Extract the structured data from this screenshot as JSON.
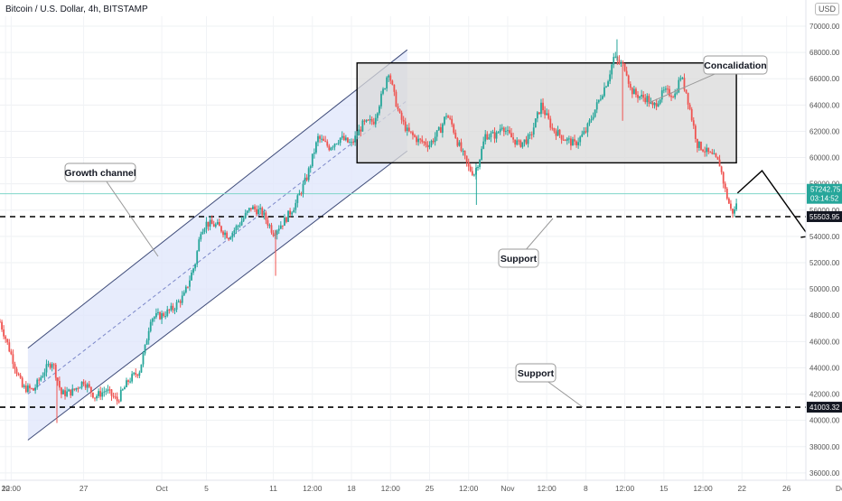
{
  "header": {
    "title": "Bitcoin / U.S. Dollar, 4h, BITSTAMP",
    "currency_button": "USD"
  },
  "chart_data": {
    "type": "candlestick",
    "y_axis": {
      "ticks": [
        36000,
        38000,
        40000,
        42000,
        44000,
        46000,
        48000,
        50000,
        52000,
        54000,
        56000,
        58000,
        60000,
        62000,
        64000,
        66000,
        68000,
        70000
      ],
      "tick_labels": [
        "36000.00",
        "38000.00",
        "40000.00",
        "42000.00",
        "44000.00",
        "46000.00",
        "48000.00",
        "50000.00",
        "52000.00",
        "54000.00",
        "56000.00",
        "58000.00",
        "60000.00",
        "62000.00",
        "64000.00",
        "66000.00",
        "68000.00",
        "70000.00"
      ],
      "range": [
        35400,
        72000
      ]
    },
    "x_axis": {
      "ticks": [
        {
          "day": 20,
          "label": "20"
        },
        {
          "day": 20.5,
          "label": "12:00"
        },
        {
          "day": 27,
          "label": "27"
        },
        {
          "day": 34,
          "label": "Oct"
        },
        {
          "day": 38,
          "label": "5"
        },
        {
          "day": 44,
          "label": "11"
        },
        {
          "day": 47.5,
          "label": "12:00"
        },
        {
          "day": 51,
          "label": "18"
        },
        {
          "day": 54.5,
          "label": "12:00"
        },
        {
          "day": 58,
          "label": "25"
        },
        {
          "day": 61.5,
          "label": "12:00"
        },
        {
          "day": 65,
          "label": "Nov"
        },
        {
          "day": 68.5,
          "label": "12:00"
        },
        {
          "day": 72,
          "label": "8"
        },
        {
          "day": 75.5,
          "label": "12:00"
        },
        {
          "day": 79,
          "label": "15"
        },
        {
          "day": 82.5,
          "label": "12:00"
        },
        {
          "day": 86,
          "label": "22"
        },
        {
          "day": 90,
          "label": "26"
        },
        {
          "day": 95,
          "label": "Dec"
        }
      ]
    },
    "price_path": [
      [
        19.5,
        47500
      ],
      [
        20.5,
        45000
      ],
      [
        21.5,
        42500
      ],
      [
        22.5,
        42300
      ],
      [
        23.5,
        43800
      ],
      [
        24.2,
        44500
      ],
      [
        25,
        42000
      ],
      [
        26,
        42200
      ],
      [
        27,
        43000
      ],
      [
        28,
        41800
      ],
      [
        29,
        42300
      ],
      [
        30,
        41500
      ],
      [
        31,
        43000
      ],
      [
        32,
        43800
      ],
      [
        32.5,
        45500
      ],
      [
        33,
        47800
      ],
      [
        34,
        48000
      ],
      [
        35,
        48500
      ],
      [
        36,
        49500
      ],
      [
        37,
        52000
      ],
      [
        37.5,
        54500
      ],
      [
        38,
        55000
      ],
      [
        39,
        54800
      ],
      [
        40,
        54000
      ],
      [
        41,
        55000
      ],
      [
        42,
        56200
      ],
      [
        43,
        55800
      ],
      [
        44,
        54300
      ],
      [
        45,
        55200
      ],
      [
        46,
        56500
      ],
      [
        47,
        58500
      ],
      [
        48,
        61500
      ],
      [
        49,
        60800
      ],
      [
        50,
        61500
      ],
      [
        51,
        61000
      ],
      [
        52,
        62500
      ],
      [
        53,
        62800
      ],
      [
        54,
        65500
      ],
      [
        54.3,
        66700
      ],
      [
        54.8,
        64800
      ],
      [
        55.3,
        63200
      ],
      [
        56,
        62000
      ],
      [
        57,
        61300
      ],
      [
        58,
        61000
      ],
      [
        59,
        62200
      ],
      [
        59.5,
        63300
      ],
      [
        60,
        62500
      ],
      [
        60.5,
        61200
      ],
      [
        61.5,
        59200
      ],
      [
        62,
        58800
      ],
      [
        62.5,
        60000
      ],
      [
        63,
        61700
      ],
      [
        64,
        61700
      ],
      [
        64.5,
        62500
      ],
      [
        65,
        61800
      ],
      [
        66,
        61000
      ],
      [
        67,
        61500
      ],
      [
        68,
        64000
      ],
      [
        69,
        62200
      ],
      [
        70,
        61500
      ],
      [
        71,
        61000
      ],
      [
        72,
        62000
      ],
      [
        73,
        64000
      ],
      [
        74,
        66000
      ],
      [
        74.5,
        67600
      ],
      [
        75,
        67200
      ],
      [
        75.6,
        66800
      ],
      [
        76,
        65200
      ],
      [
        76.5,
        64800
      ],
      [
        77,
        64600
      ],
      [
        77.5,
        64500
      ],
      [
        78,
        63800
      ],
      [
        78.5,
        64400
      ],
      [
        79,
        65000
      ],
      [
        80,
        64800
      ],
      [
        80.5,
        66200
      ],
      [
        81,
        65000
      ],
      [
        81.5,
        63000
      ],
      [
        82,
        61000
      ],
      [
        82.5,
        60700
      ],
      [
        83,
        60300
      ],
      [
        83.5,
        60000
      ],
      [
        84,
        59500
      ],
      [
        84.5,
        57500
      ],
      [
        85,
        56000
      ],
      [
        85.3,
        55800
      ],
      [
        85.6,
        57000
      ]
    ],
    "last_price": {
      "value": 57242.75,
      "label": "57242.75",
      "countdown": "03:14:52"
    },
    "annotations": [
      {
        "type": "rising_channel",
        "label": "Growth channel",
        "lower": [
          [
            22,
            38500
          ],
          [
            56,
            60500
          ]
        ],
        "upper": [
          [
            22,
            45500
          ],
          [
            56,
            68200
          ]
        ]
      },
      {
        "type": "range_box",
        "label": "Concalidation",
        "x": [
          51.5,
          85.5
        ],
        "y": [
          59600,
          67200
        ]
      },
      {
        "type": "horizontal_line",
        "label": "Support",
        "value": 55503.95,
        "value_label": "55503.95"
      },
      {
        "type": "horizontal_line",
        "label": "Support",
        "value": 41003.32,
        "value_label": "41003.32"
      },
      {
        "type": "projection_arrow",
        "points": [
          [
            85.6,
            57300
          ],
          [
            87.8,
            59000
          ],
          [
            92,
            54000
          ]
        ]
      }
    ]
  }
}
